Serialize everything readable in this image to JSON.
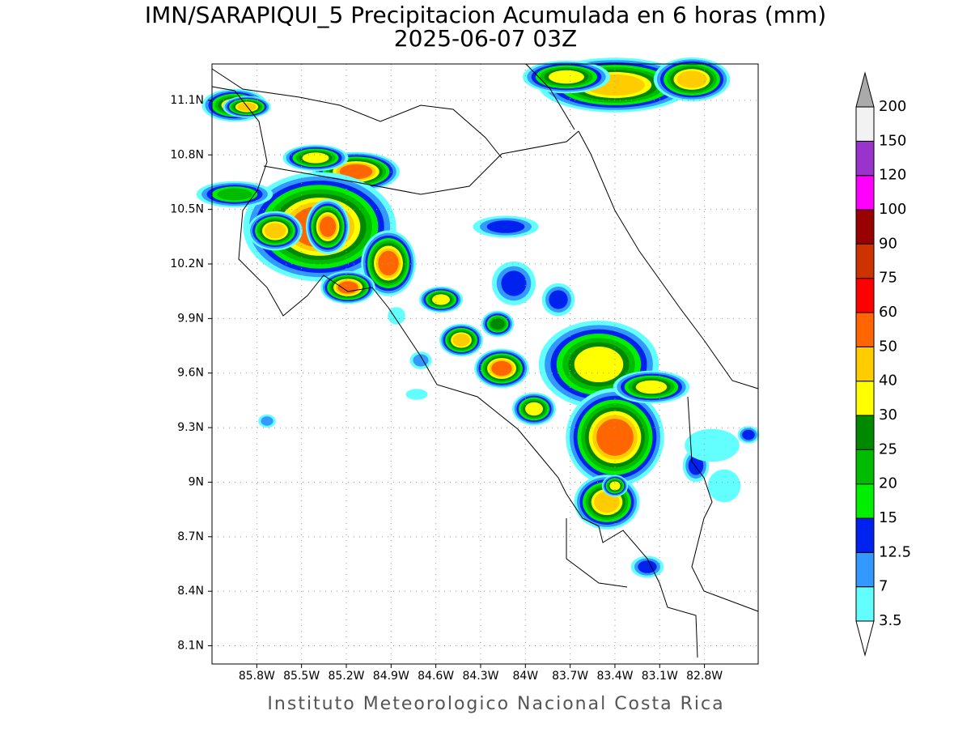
{
  "header": {
    "title": "IMN/SARAPIQUI_5 Precipitacion Acumulada en 6 horas (mm)",
    "subtitle": "2025-06-07 03Z"
  },
  "map": {
    "lonlim": [
      -86.1,
      -82.44
    ],
    "latlim": [
      8.0,
      11.3
    ],
    "lat_ticks": [
      {
        "value": 11.1,
        "label": "11.1N"
      },
      {
        "value": 10.8,
        "label": "10.8N"
      },
      {
        "value": 10.5,
        "label": "10.5N"
      },
      {
        "value": 10.2,
        "label": "10.2N"
      },
      {
        "value": 9.9,
        "label": "9.9N"
      },
      {
        "value": 9.6,
        "label": "9.6N"
      },
      {
        "value": 9.3,
        "label": "9.3N"
      },
      {
        "value": 9,
        "label": "9N"
      },
      {
        "value": 8.7,
        "label": "8.7N"
      },
      {
        "value": 8.4,
        "label": "8.4N"
      },
      {
        "value": 8.1,
        "label": "8.1N"
      }
    ],
    "lon_ticks": [
      {
        "value": -85.8,
        "label": "85.8W"
      },
      {
        "value": -85.5,
        "label": "85.5W"
      },
      {
        "value": -85.2,
        "label": "85.2W"
      },
      {
        "value": -84.9,
        "label": "84.9W"
      },
      {
        "value": -84.6,
        "label": "84.6W"
      },
      {
        "value": -84.3,
        "label": "84.3W"
      },
      {
        "value": -84,
        "label": "84W"
      },
      {
        "value": -83.7,
        "label": "83.7W"
      },
      {
        "value": -83.4,
        "label": "83.4W"
      },
      {
        "value": -83.1,
        "label": "83.1W"
      },
      {
        "value": -82.8,
        "label": "82.8W"
      }
    ]
  },
  "colorbar": {
    "levels": [
      3.5,
      7,
      12.5,
      15,
      20,
      25,
      30,
      40,
      50,
      60,
      75,
      90,
      100,
      120,
      150,
      200
    ],
    "colors": [
      "#63ffff",
      "#3399ff",
      "#0022ee",
      "#00ee00",
      "#00bb00",
      "#008800",
      "#ffff00",
      "#ffcc00",
      "#ff6600",
      "#ff0000",
      "#cc3300",
      "#990000",
      "#ff00ff",
      "#9933cc",
      "#f2f2f2"
    ],
    "under_color": "#ffffff",
    "over_color": "#aaaaaa"
  },
  "footer": "Instituto Meteorologico Nacional Costa Rica"
}
